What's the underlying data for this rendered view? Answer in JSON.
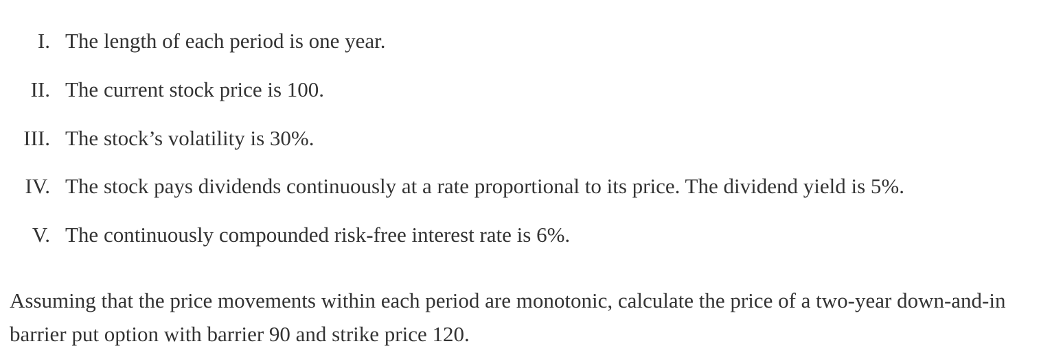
{
  "assumptions": [
    {
      "marker": "I.",
      "text": "The length of each period is one year."
    },
    {
      "marker": "II.",
      "text": "The current stock price is 100."
    },
    {
      "marker": "III.",
      "text": "The stock’s volatility is 30%."
    },
    {
      "marker": "IV.",
      "text": "The stock pays dividends continuously at a rate proportional to its price. The dividend yield is 5%."
    },
    {
      "marker": "V.",
      "text": "The continuously compounded risk-free interest rate is 6%."
    }
  ],
  "question": "Assuming that the price movements within each period are monotonic, calculate the price of a two-year down-and-in barrier put option with barrier 90 and strike price 120."
}
